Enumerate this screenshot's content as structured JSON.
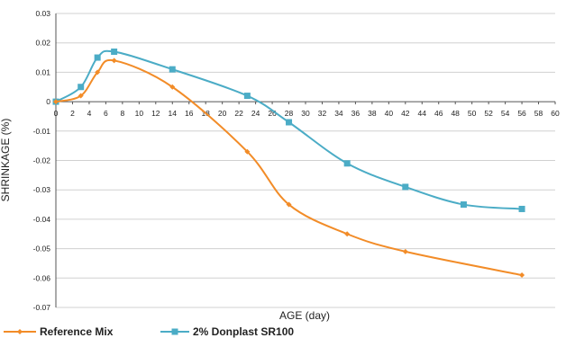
{
  "chart_data": {
    "type": "line",
    "title": "",
    "xlabel": "AGE (day)",
    "ylabel": "SHRINKAGE (%)",
    "xlim": [
      0,
      60
    ],
    "ylim": [
      -0.07,
      0.03
    ],
    "x_ticks": [
      0,
      2,
      4,
      6,
      8,
      10,
      12,
      14,
      16,
      18,
      20,
      22,
      24,
      26,
      28,
      30,
      32,
      34,
      36,
      38,
      40,
      42,
      44,
      46,
      48,
      50,
      52,
      54,
      56,
      58,
      60
    ],
    "y_ticks": [
      0.03,
      0.02,
      0.01,
      0,
      -0.01,
      -0.02,
      -0.03,
      -0.04,
      -0.05,
      -0.06,
      -0.07
    ],
    "y_tick_labels": [
      "0.03",
      "0.02",
      "0.01",
      "0",
      "-0.01",
      "-0.02",
      "-0.03",
      "-0.04",
      "-0.05",
      "-0.06",
      "-0.07"
    ],
    "grid": "y-major",
    "legend_position": "bottom-left",
    "series": [
      {
        "name": "Reference Mix",
        "color": "#f28c28",
        "marker": "diamond",
        "points": [
          {
            "x": 0,
            "y": 0
          },
          {
            "x": 3,
            "y": 0.002
          },
          {
            "x": 5,
            "y": 0.01
          },
          {
            "x": 7,
            "y": 0.014
          },
          {
            "x": 14,
            "y": 0.005
          },
          {
            "x": 23,
            "y": -0.017
          },
          {
            "x": 28,
            "y": -0.035
          },
          {
            "x": 35,
            "y": -0.045
          },
          {
            "x": 42,
            "y": -0.051
          },
          {
            "x": 56,
            "y": -0.059
          }
        ]
      },
      {
        "name": "2% Donplast SR100",
        "color": "#4bacc6",
        "marker": "square",
        "points": [
          {
            "x": 0,
            "y": 0
          },
          {
            "x": 3,
            "y": 0.005
          },
          {
            "x": 5,
            "y": 0.015
          },
          {
            "x": 7,
            "y": 0.017
          },
          {
            "x": 14,
            "y": 0.011
          },
          {
            "x": 23,
            "y": 0.002
          },
          {
            "x": 28,
            "y": -0.007
          },
          {
            "x": 35,
            "y": -0.021
          },
          {
            "x": 42,
            "y": -0.029
          },
          {
            "x": 49,
            "y": -0.035
          },
          {
            "x": 56,
            "y": -0.0365
          }
        ]
      }
    ]
  },
  "colors": {
    "axis": "#555555",
    "grid": "#d0d0d0"
  }
}
